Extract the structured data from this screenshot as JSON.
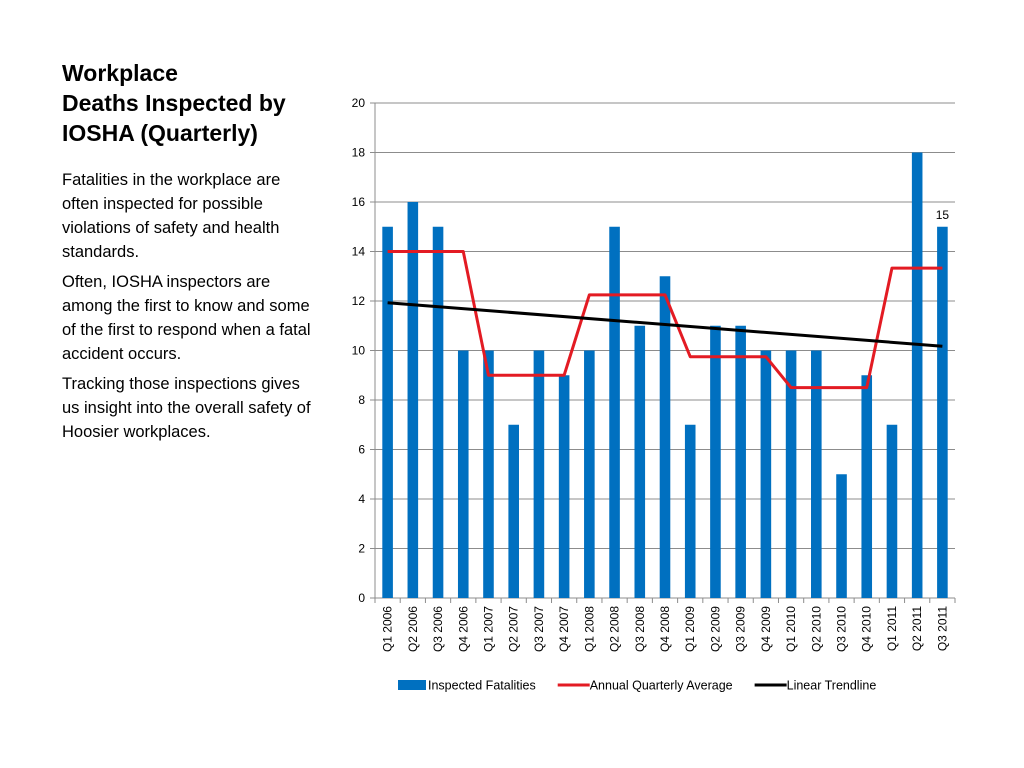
{
  "slide": {
    "title_lines": [
      "Workplace",
      "Deaths Inspected  by",
      "IOSHA (Quarterly)"
    ],
    "paragraphs": [
      "Fatalities in the workplace are often inspected for  possible violations of safety and health standards.",
      "Often, IOSHA inspectors are among the first to know and some of the first to respond when a fatal accident occurs.",
      "Tracking those inspections gives us insight into the overall safety of Hoosier workplaces."
    ]
  },
  "chart_data": {
    "type": "bar",
    "categories": [
      "Q1 2006",
      "Q2 2006",
      "Q3 2006",
      "Q4 2006",
      "Q1 2007",
      "Q2 2007",
      "Q3 2007",
      "Q4 2007",
      "Q1 2008",
      "Q2 2008",
      "Q3 2008",
      "Q4 2008",
      "Q1 2009",
      "Q2 2009",
      "Q3 2009",
      "Q4 2009",
      "Q1 2010",
      "Q2 2010",
      "Q3 2010",
      "Q4 2010",
      "Q1 2011",
      "Q2 2011",
      "Q3 2011"
    ],
    "series": [
      {
        "name": "Inspected Fatalities",
        "kind": "bar",
        "color": "#0070C0",
        "values": [
          15,
          16,
          15,
          10,
          10,
          7,
          10,
          9,
          10,
          15,
          11,
          13,
          7,
          11,
          11,
          10,
          10,
          10,
          5,
          9,
          7,
          18,
          15
        ]
      },
      {
        "name": "Annual Quarterly Average",
        "kind": "line",
        "color": "#E31B23",
        "values": [
          14,
          14,
          14,
          14,
          9,
          9,
          9,
          9,
          12.25,
          12.25,
          12.25,
          12.25,
          9.75,
          9.75,
          9.75,
          9.75,
          8.5,
          8.5,
          8.5,
          8.5,
          13.33,
          13.33,
          13.33
        ]
      },
      {
        "name": "Linear Trendline",
        "kind": "line",
        "color": "#000000",
        "values": [
          11.93,
          11.85,
          11.77,
          11.69,
          11.61,
          11.53,
          11.45,
          11.37,
          11.29,
          11.21,
          11.13,
          11.05,
          10.97,
          10.89,
          10.81,
          10.73,
          10.65,
          10.57,
          10.49,
          10.41,
          10.33,
          10.25,
          10.17
        ]
      }
    ],
    "data_labels": [
      {
        "category": "Q3 2011",
        "text": "15"
      }
    ],
    "ylim": [
      0,
      20
    ],
    "yticks": [
      "0",
      "2",
      "4",
      "6",
      "8",
      "10",
      "12",
      "14",
      "16",
      "18",
      "20"
    ],
    "grid": true,
    "legend_position": "bottom"
  }
}
